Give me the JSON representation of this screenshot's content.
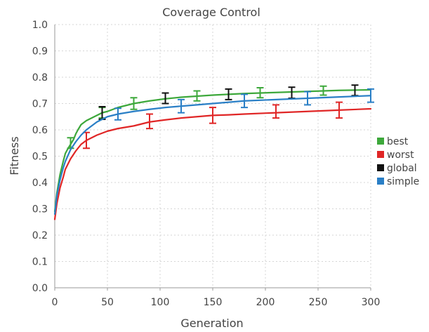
{
  "chart_data": {
    "type": "line",
    "title": "Coverage Control",
    "xlabel": "Generation",
    "ylabel": "Fitness",
    "xlim": [
      0,
      300
    ],
    "ylim": [
      0.0,
      1.0
    ],
    "xticks": [
      0,
      50,
      100,
      150,
      200,
      250,
      300
    ],
    "yticks": [
      0.0,
      0.1,
      0.2,
      0.3,
      0.4,
      0.5,
      0.6,
      0.7,
      0.8,
      0.9,
      1.0
    ],
    "grid": true,
    "legend_position": "right",
    "series": [
      {
        "name": "best",
        "color": "#3da83b",
        "x": [
          0,
          2,
          5,
          8,
          10,
          12,
          15,
          18,
          20,
          22,
          25,
          30,
          35,
          40,
          45,
          50,
          60,
          75,
          90,
          105,
          120,
          135,
          150,
          165,
          180,
          195,
          210,
          225,
          240,
          255,
          270,
          285,
          300
        ],
        "y": [
          0.29,
          0.36,
          0.43,
          0.48,
          0.51,
          0.525,
          0.545,
          0.565,
          0.585,
          0.6,
          0.62,
          0.635,
          0.645,
          0.655,
          0.665,
          0.67,
          0.685,
          0.7,
          0.71,
          0.718,
          0.724,
          0.728,
          0.732,
          0.735,
          0.738,
          0.74,
          0.742,
          0.744,
          0.746,
          0.748,
          0.75,
          0.751,
          0.752
        ],
        "error_x": [
          15,
          45,
          75,
          135,
          195,
          255
        ],
        "error_y": [
          0.55,
          0.665,
          0.7,
          0.728,
          0.74,
          0.748
        ],
        "error_lo": [
          0.53,
          0.645,
          0.678,
          0.71,
          0.722,
          0.732
        ],
        "error_hi": [
          0.57,
          0.685,
          0.722,
          0.748,
          0.76,
          0.766
        ]
      },
      {
        "name": "worst",
        "color": "#e02626",
        "x": [
          0,
          2,
          5,
          8,
          10,
          15,
          20,
          25,
          30,
          40,
          50,
          60,
          75,
          90,
          105,
          120,
          135,
          150,
          165,
          180,
          210,
          240,
          270,
          300
        ],
        "y": [
          0.26,
          0.32,
          0.38,
          0.42,
          0.45,
          0.49,
          0.52,
          0.545,
          0.56,
          0.58,
          0.595,
          0.605,
          0.615,
          0.63,
          0.638,
          0.645,
          0.65,
          0.655,
          0.657,
          0.66,
          0.665,
          0.67,
          0.675,
          0.68
        ],
        "error_x": [
          30,
          90,
          150,
          210,
          270
        ],
        "error_y": [
          0.56,
          0.63,
          0.655,
          0.67,
          0.675
        ],
        "error_lo": [
          0.53,
          0.605,
          0.625,
          0.645,
          0.645
        ],
        "error_hi": [
          0.59,
          0.66,
          0.685,
          0.695,
          0.705
        ]
      },
      {
        "name": "global",
        "color": "#111111",
        "x": [
          45,
          105,
          165,
          225,
          285
        ],
        "y": [
          0.665,
          0.72,
          0.735,
          0.742,
          0.75
        ],
        "error_x": [
          45,
          105,
          165,
          225,
          285
        ],
        "error_y": [
          0.665,
          0.72,
          0.735,
          0.742,
          0.75
        ],
        "error_lo": [
          0.64,
          0.7,
          0.715,
          0.72,
          0.73
        ],
        "error_hi": [
          0.688,
          0.74,
          0.755,
          0.762,
          0.77
        ]
      },
      {
        "name": "simple",
        "color": "#2a7fc6",
        "x": [
          0,
          2,
          5,
          8,
          10,
          15,
          20,
          25,
          30,
          40,
          50,
          60,
          75,
          90,
          105,
          120,
          135,
          150,
          165,
          180,
          210,
          240,
          270,
          300
        ],
        "y": [
          0.28,
          0.35,
          0.41,
          0.455,
          0.48,
          0.525,
          0.555,
          0.58,
          0.6,
          0.63,
          0.65,
          0.66,
          0.67,
          0.678,
          0.685,
          0.69,
          0.695,
          0.7,
          0.705,
          0.71,
          0.715,
          0.72,
          0.725,
          0.73
        ],
        "error_x": [
          60,
          120,
          180,
          240,
          300
        ],
        "error_y": [
          0.66,
          0.69,
          0.71,
          0.72,
          0.73
        ],
        "error_lo": [
          0.638,
          0.665,
          0.685,
          0.695,
          0.705
        ],
        "error_hi": [
          0.682,
          0.715,
          0.735,
          0.745,
          0.755
        ]
      }
    ]
  }
}
